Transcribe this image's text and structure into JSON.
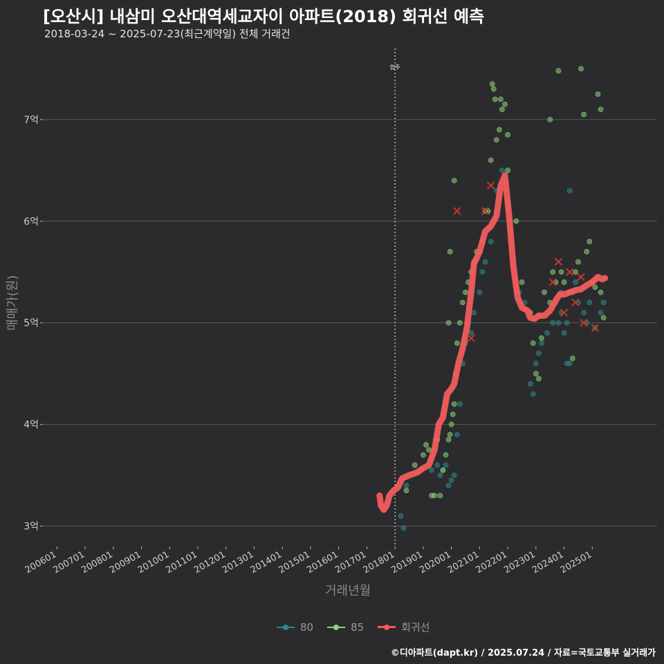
{
  "chart_data": {
    "type": "scatter",
    "title": "[오산시] 내삼미 오산대역세교자이 아파트(2018) 회귀선 예측",
    "subtitle": "2018-03-24 ~ 2025-07-23(최근계약일) 전체 거래건",
    "xlabel": "거래년월",
    "ylabel": "매매가(원)",
    "caption": "©디아파트(dapt.kr) / 2025.07.24 / 자료=국토교통부 실거래가",
    "y_ticks": [
      {
        "value": 3,
        "label": "3억"
      },
      {
        "value": 4,
        "label": "4억"
      },
      {
        "value": 5,
        "label": "5억"
      },
      {
        "value": 6,
        "label": "6억"
      },
      {
        "value": 7,
        "label": "7억"
      }
    ],
    "ylim": [
      2.8,
      7.7
    ],
    "xlim": [
      2005.5,
      2027.3
    ],
    "x_ticks": [
      {
        "value": 2006.0,
        "label": "200601"
      },
      {
        "value": 2007.0,
        "label": "200701"
      },
      {
        "value": 2008.0,
        "label": "200801"
      },
      {
        "value": 2009.0,
        "label": "200901"
      },
      {
        "value": 2010.0,
        "label": "201001"
      },
      {
        "value": 2011.0,
        "label": "201101"
      },
      {
        "value": 2012.0,
        "label": "201201"
      },
      {
        "value": 2013.0,
        "label": "201301"
      },
      {
        "value": 2014.0,
        "label": "201401"
      },
      {
        "value": 2015.0,
        "label": "201501"
      },
      {
        "value": 2016.0,
        "label": "201601"
      },
      {
        "value": 2017.0,
        "label": "201701"
      },
      {
        "value": 2018.0,
        "label": "201801"
      },
      {
        "value": 2019.0,
        "label": "201901"
      },
      {
        "value": 2020.0,
        "label": "202001"
      },
      {
        "value": 2021.0,
        "label": "202101"
      },
      {
        "value": 2022.0,
        "label": "202201"
      },
      {
        "value": 2023.0,
        "label": "202301"
      },
      {
        "value": 2024.0,
        "label": "202401"
      },
      {
        "value": 2025.0,
        "label": "202501"
      }
    ],
    "vline": {
      "x": 2018.0,
      "label": "입주"
    },
    "legend": [
      {
        "name": "80",
        "color": "#2e8a8c",
        "kind": "point"
      },
      {
        "name": "85",
        "color": "#8fd47a",
        "kind": "point"
      },
      {
        "name": "회귀선",
        "color": "#f25c5c",
        "kind": "line"
      }
    ],
    "series": [
      {
        "name": "80",
        "color": "#2e8a8c",
        "points": [
          [
            2018.2,
            3.1
          ],
          [
            2018.3,
            2.98
          ],
          [
            2018.4,
            3.4
          ],
          [
            2019.3,
            3.55
          ],
          [
            2019.5,
            3.6
          ],
          [
            2019.6,
            3.5
          ],
          [
            2019.7,
            3.55
          ],
          [
            2019.8,
            3.6
          ],
          [
            2019.9,
            3.4
          ],
          [
            2020.0,
            3.45
          ],
          [
            2020.1,
            3.5
          ],
          [
            2020.2,
            3.9
          ],
          [
            2020.3,
            4.2
          ],
          [
            2020.4,
            4.6
          ],
          [
            2020.5,
            4.8
          ],
          [
            2020.6,
            5.0
          ],
          [
            2020.7,
            4.9
          ],
          [
            2020.8,
            5.1
          ],
          [
            2021.0,
            5.3
          ],
          [
            2021.1,
            5.5
          ],
          [
            2021.2,
            5.6
          ],
          [
            2021.4,
            5.8
          ],
          [
            2021.6,
            6.3
          ],
          [
            2021.8,
            6.5
          ],
          [
            2022.0,
            6.2
          ],
          [
            2022.1,
            5.8
          ],
          [
            2022.4,
            5.3
          ],
          [
            2022.6,
            5.2
          ],
          [
            2022.8,
            4.4
          ],
          [
            2022.9,
            4.3
          ],
          [
            2023.0,
            4.6
          ],
          [
            2023.1,
            4.7
          ],
          [
            2023.2,
            4.8
          ],
          [
            2023.4,
            4.9
          ],
          [
            2023.6,
            5.0
          ],
          [
            2023.7,
            5.2
          ],
          [
            2023.8,
            5.0
          ],
          [
            2023.9,
            5.1
          ],
          [
            2024.0,
            4.9
          ],
          [
            2024.1,
            5.0
          ],
          [
            2024.1,
            4.6
          ],
          [
            2024.2,
            4.6
          ],
          [
            2024.3,
            5.3
          ],
          [
            2024.4,
            5.4
          ],
          [
            2024.5,
            5.2
          ],
          [
            2024.7,
            5.1
          ],
          [
            2024.8,
            5.0
          ],
          [
            2024.9,
            5.2
          ],
          [
            2025.1,
            4.95
          ],
          [
            2025.3,
            5.1
          ],
          [
            2025.4,
            5.2
          ],
          [
            2024.2,
            6.3
          ],
          [
            2023.9,
            5.3
          ]
        ]
      },
      {
        "name": "85",
        "color": "#8fd47a",
        "points": [
          [
            2018.4,
            3.35
          ],
          [
            2018.7,
            3.6
          ],
          [
            2019.0,
            3.7
          ],
          [
            2019.1,
            3.8
          ],
          [
            2019.2,
            3.75
          ],
          [
            2019.3,
            3.3
          ],
          [
            2019.4,
            3.3
          ],
          [
            2019.5,
            3.85
          ],
          [
            2019.6,
            3.3
          ],
          [
            2019.7,
            3.55
          ],
          [
            2019.8,
            3.7
          ],
          [
            2019.9,
            3.85
          ],
          [
            2019.95,
            3.9
          ],
          [
            2020.0,
            4.0
          ],
          [
            2020.05,
            4.1
          ],
          [
            2020.1,
            4.2
          ],
          [
            2020.1,
            6.4
          ],
          [
            2020.15,
            4.5
          ],
          [
            2020.2,
            4.8
          ],
          [
            2020.3,
            5.0
          ],
          [
            2020.4,
            5.2
          ],
          [
            2020.5,
            5.3
          ],
          [
            2020.6,
            5.4
          ],
          [
            2020.7,
            5.5
          ],
          [
            2020.8,
            5.6
          ],
          [
            2020.9,
            5.7
          ],
          [
            2021.0,
            5.7
          ],
          [
            2021.1,
            5.8
          ],
          [
            2021.2,
            6.1
          ],
          [
            2021.3,
            6.1
          ],
          [
            2021.4,
            6.6
          ],
          [
            2021.45,
            7.35
          ],
          [
            2021.5,
            7.3
          ],
          [
            2021.55,
            7.2
          ],
          [
            2021.6,
            6.8
          ],
          [
            2021.7,
            6.9
          ],
          [
            2021.75,
            7.2
          ],
          [
            2021.8,
            7.1
          ],
          [
            2021.9,
            7.15
          ],
          [
            2022.0,
            6.5
          ],
          [
            2022.0,
            6.85
          ],
          [
            2022.3,
            6.0
          ],
          [
            2022.5,
            5.4
          ],
          [
            2022.8,
            5.1
          ],
          [
            2022.9,
            4.8
          ],
          [
            2023.0,
            4.5
          ],
          [
            2023.1,
            4.45
          ],
          [
            2023.2,
            4.85
          ],
          [
            2023.3,
            5.3
          ],
          [
            2023.5,
            5.2
          ],
          [
            2023.6,
            5.5
          ],
          [
            2023.7,
            5.4
          ],
          [
            2023.8,
            7.48
          ],
          [
            2023.9,
            5.5
          ],
          [
            2024.0,
            5.4
          ],
          [
            2024.2,
            5.3
          ],
          [
            2024.3,
            4.65
          ],
          [
            2024.4,
            5.5
          ],
          [
            2024.5,
            5.6
          ],
          [
            2024.6,
            7.5
          ],
          [
            2024.7,
            7.05
          ],
          [
            2024.8,
            5.7
          ],
          [
            2024.9,
            5.8
          ],
          [
            2025.0,
            5.4
          ],
          [
            2025.1,
            5.35
          ],
          [
            2025.2,
            7.25
          ],
          [
            2025.3,
            7.1
          ],
          [
            2025.3,
            5.3
          ],
          [
            2025.4,
            5.05
          ],
          [
            2023.5,
            7.0
          ],
          [
            2019.95,
            5.7
          ],
          [
            2019.9,
            5.0
          ]
        ]
      }
    ],
    "regression": {
      "name": "회귀선",
      "color": "#f25c5c",
      "points": [
        [
          2017.45,
          3.3
        ],
        [
          2017.5,
          3.2
        ],
        [
          2017.6,
          3.16
        ],
        [
          2017.7,
          3.2
        ],
        [
          2017.8,
          3.3
        ],
        [
          2017.95,
          3.35
        ],
        [
          2018.1,
          3.38
        ],
        [
          2018.25,
          3.47
        ],
        [
          2018.5,
          3.5
        ],
        [
          2018.8,
          3.53
        ],
        [
          2019.0,
          3.57
        ],
        [
          2019.2,
          3.6
        ],
        [
          2019.4,
          3.75
        ],
        [
          2019.55,
          4.0
        ],
        [
          2019.7,
          4.07
        ],
        [
          2019.85,
          4.3
        ],
        [
          2020.0,
          4.35
        ],
        [
          2020.1,
          4.4
        ],
        [
          2020.25,
          4.6
        ],
        [
          2020.4,
          4.75
        ],
        [
          2020.55,
          4.95
        ],
        [
          2020.7,
          5.3
        ],
        [
          2020.8,
          5.58
        ],
        [
          2021.0,
          5.7
        ],
        [
          2021.2,
          5.9
        ],
        [
          2021.4,
          5.95
        ],
        [
          2021.6,
          6.05
        ],
        [
          2021.75,
          6.35
        ],
        [
          2021.9,
          6.45
        ],
        [
          2022.05,
          6.05
        ],
        [
          2022.2,
          5.55
        ],
        [
          2022.35,
          5.25
        ],
        [
          2022.5,
          5.15
        ],
        [
          2022.7,
          5.12
        ],
        [
          2022.8,
          5.05
        ],
        [
          2022.95,
          5.04
        ],
        [
          2023.1,
          5.07
        ],
        [
          2023.3,
          5.07
        ],
        [
          2023.5,
          5.12
        ],
        [
          2023.7,
          5.22
        ],
        [
          2023.85,
          5.28
        ],
        [
          2024.0,
          5.28
        ],
        [
          2024.2,
          5.3
        ],
        [
          2024.4,
          5.32
        ],
        [
          2024.6,
          5.33
        ],
        [
          2024.8,
          5.37
        ],
        [
          2025.0,
          5.4
        ],
        [
          2025.2,
          5.45
        ],
        [
          2025.35,
          5.43
        ],
        [
          2025.45,
          5.44
        ]
      ]
    },
    "outliers": [
      [
        2020.2,
        6.1
      ],
      [
        2021.2,
        6.1
      ],
      [
        2021.4,
        6.35
      ],
      [
        2020.7,
        4.85
      ],
      [
        2023.6,
        5.4
      ],
      [
        2023.8,
        5.6
      ],
      [
        2024.2,
        5.5
      ],
      [
        2024.4,
        5.2
      ],
      [
        2024.6,
        5.45
      ],
      [
        2024.7,
        5.0
      ],
      [
        2024.0,
        5.1
      ],
      [
        2025.1,
        4.95
      ]
    ]
  }
}
